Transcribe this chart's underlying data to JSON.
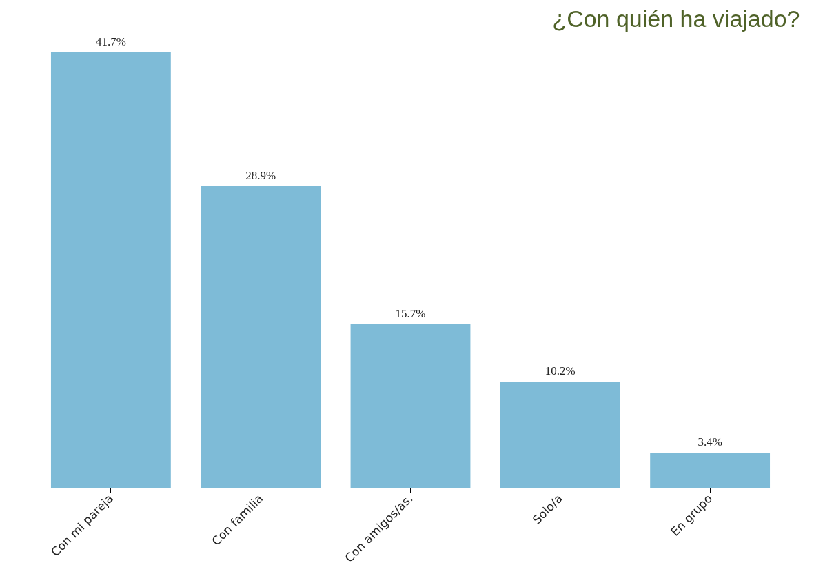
{
  "chart_data": {
    "type": "bar",
    "title": "¿Con quién ha viajado?",
    "categories": [
      "Con mi pareja",
      "Con familia",
      "Con amigos/as.",
      "Solo/a",
      "En grupo"
    ],
    "values": [
      41.7,
      28.9,
      15.7,
      10.2,
      3.4
    ],
    "value_labels": [
      "41.7%",
      "28.9%",
      "15.7%",
      "10.2%",
      "3.4%"
    ],
    "color": "#7ebbd7"
  }
}
